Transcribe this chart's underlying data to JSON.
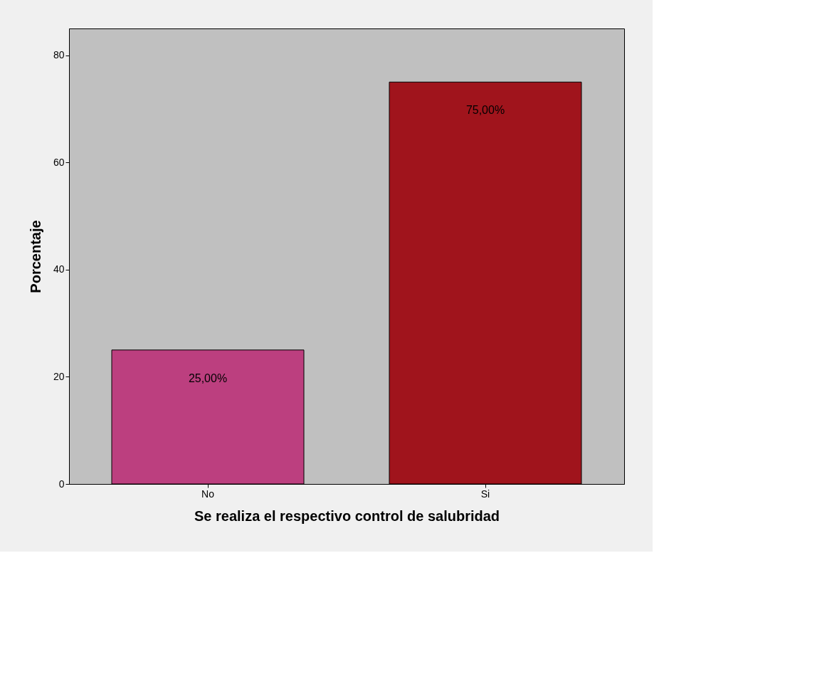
{
  "chart_data": {
    "type": "bar",
    "xlabel": "Se realiza el respectivo control de salubridad",
    "ylabel": "Porcentaje",
    "categories": [
      "No",
      "Si"
    ],
    "values": [
      25,
      75
    ],
    "colors": [
      "#bc3f7f",
      "#a0141c"
    ],
    "value_labels": [
      "25,00%",
      "75,00%"
    ],
    "ylim": [
      0,
      85
    ],
    "yticks": [
      0,
      20,
      40,
      60,
      80
    ],
    "grid": false
  }
}
